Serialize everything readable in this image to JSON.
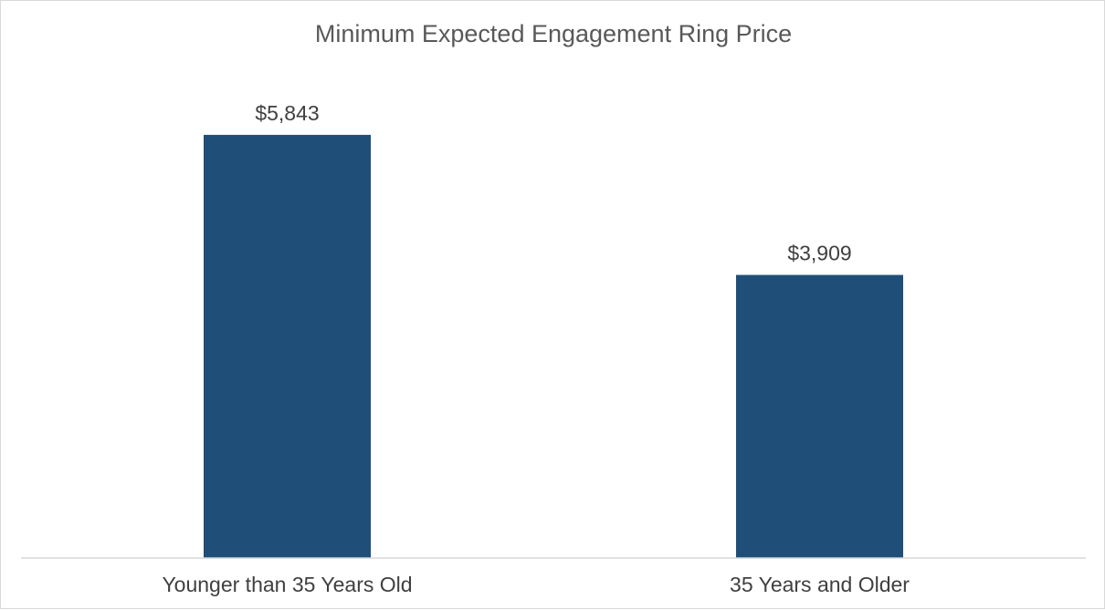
{
  "chart_data": {
    "type": "bar",
    "title": "Minimum Expected Engagement Ring Price",
    "categories": [
      "Younger than 35 Years Old",
      "35 Years and Older"
    ],
    "values": [
      5843,
      3909
    ],
    "data_labels": [
      "$5,843",
      "$3,909"
    ],
    "xlabel": "",
    "ylabel": "",
    "ylim": [
      0,
      7000
    ],
    "grid": false,
    "legend": "none",
    "bar_color": "#1f4e79",
    "axis_color": "#d9d9d9"
  }
}
